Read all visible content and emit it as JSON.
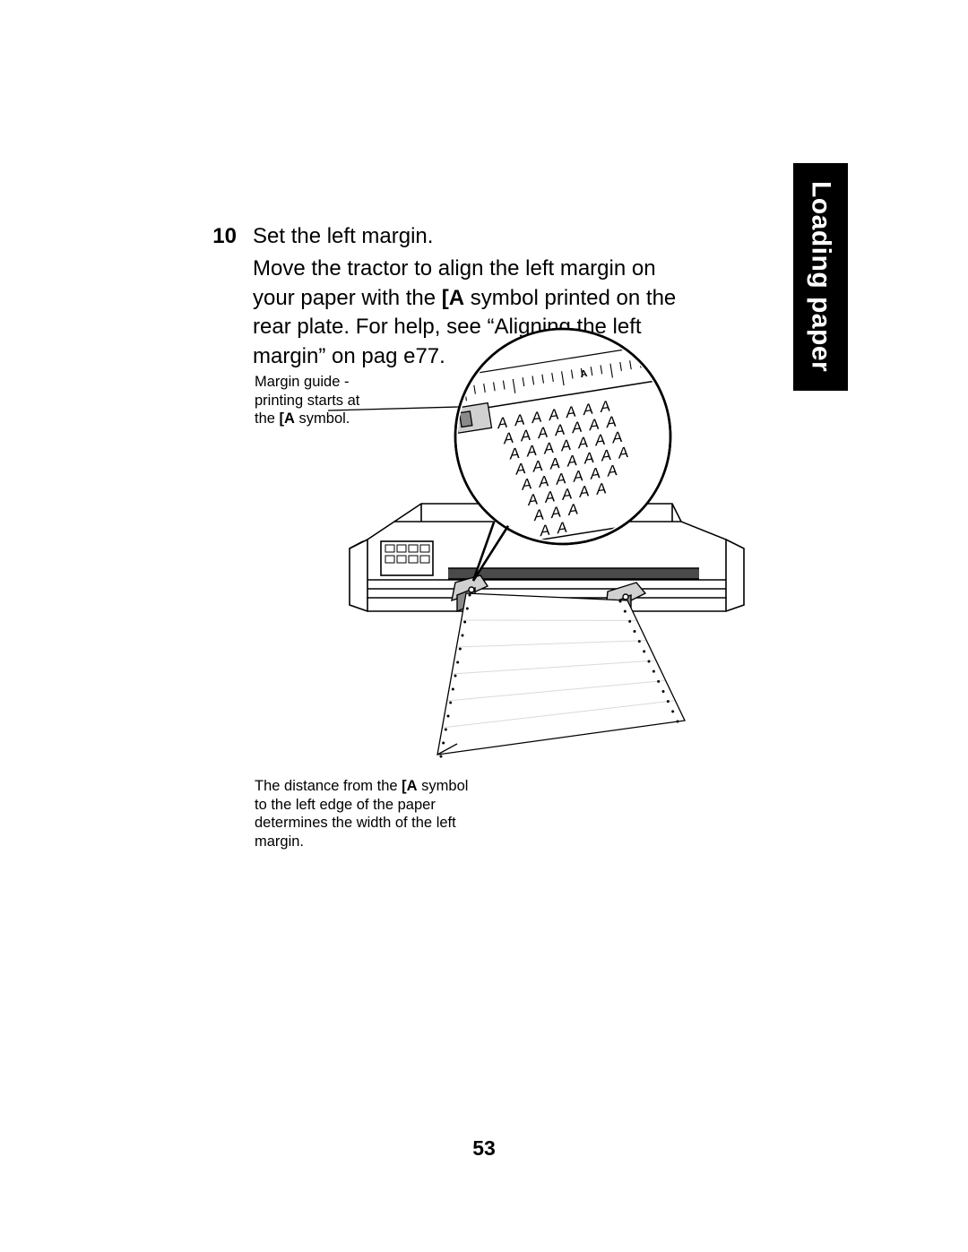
{
  "tab": {
    "label": "Loading paper"
  },
  "step": {
    "number": "10",
    "line1": "Set the left margin.",
    "para_before": "Move the tractor to align the left margin on your paper with the ",
    "para_bold": "[A",
    "para_after": " symbol printed on the rear plate. For help, see “Aligning the left margin” on pag e77."
  },
  "captions": {
    "top": {
      "line1": "Margin guide -",
      "line2": "printing starts at",
      "line3_before": "the ",
      "line3_bold": "[A",
      "line3_after": " symbol."
    },
    "bottom": {
      "line1_before": "The distance from the ",
      "line1_bold": "[A",
      "line1_after": " symbol",
      "line2": "to the left edge of the paper",
      "line3": "determines the width of the left",
      "line4": "margin."
    }
  },
  "figure": {
    "zoom_letters": [
      "AAAAAAA",
      "AAAAAAA",
      "AAAAAAA",
      "AAAAAAA",
      "AAAAAA",
      "AAAAA",
      "AAA",
      "AA"
    ],
    "ruler_ticks": 22,
    "ruler_label": "A",
    "paper_line_count": 5,
    "colors": {
      "stroke": "#000000",
      "paper": "#ffffff",
      "shade_light": "#d0d0d0",
      "shade_mid": "#8a8a8a",
      "shade_dark": "#4a4a4a"
    }
  },
  "page_number": "53"
}
